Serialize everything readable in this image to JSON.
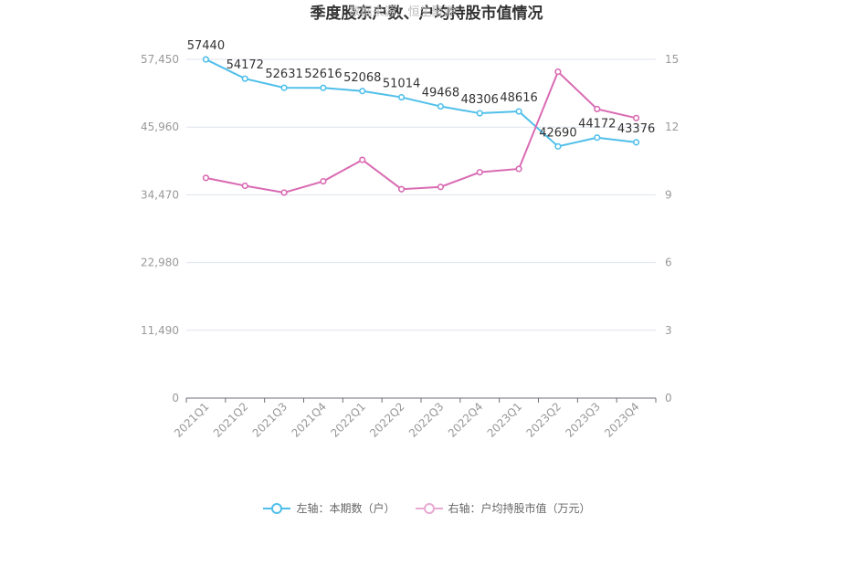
{
  "chart_data": {
    "type": "line",
    "title": "季度股东户数、户均持股市值情况",
    "watermark": "数据来源：恒生聚源",
    "categories": [
      "2021Q1",
      "2021Q2",
      "2021Q3",
      "2021Q4",
      "2022Q1",
      "2022Q2",
      "2022Q3",
      "2022Q4",
      "2023Q1",
      "2023Q2",
      "2023Q3",
      "2023Q4"
    ],
    "left_axis": {
      "ylim": [
        0,
        57450
      ],
      "ticks": [
        "0",
        "11,490",
        "22,980",
        "34,470",
        "45,960",
        "57,450"
      ]
    },
    "right_axis": {
      "ylim": [
        0,
        15
      ],
      "ticks": [
        "0",
        "3",
        "6",
        "9",
        "12",
        "15"
      ]
    },
    "series": [
      {
        "name": "左轴：本期数（户）",
        "axis": "left",
        "color": "#4fbfea",
        "values": [
          57440,
          54172,
          52631,
          52616,
          52068,
          51014,
          49468,
          48306,
          48616,
          42690,
          44172,
          43376
        ],
        "labels": [
          "57440",
          "54172",
          "52631",
          "52616",
          "52068",
          "51014",
          "49468",
          "48306",
          "48616",
          "42690",
          "44172",
          "43376"
        ]
      },
      {
        "name": "右轴：户均持股市值（万元）",
        "axis": "right",
        "color": "#d96bb3",
        "values": [
          9.75,
          9.4,
          9.1,
          9.6,
          10.55,
          9.25,
          9.35,
          10.0,
          10.15,
          14.45,
          12.8,
          12.4
        ]
      }
    ],
    "grid": true,
    "legend_position": "bottom"
  }
}
